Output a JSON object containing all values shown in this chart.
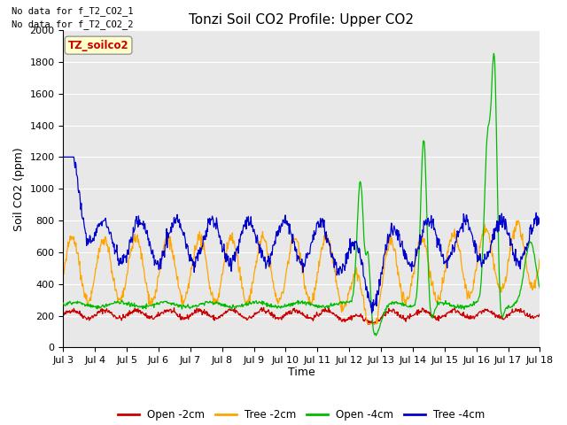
{
  "title": "Tonzi Soil CO2 Profile: Upper CO2",
  "ylabel": "Soil CO2 (ppm)",
  "xlabel": "Time",
  "top_left_text_1": "No data for f_T2_CO2_1",
  "top_left_text_2": "No data for f_T2_CO2_2",
  "data_label": "TZ_soilco2",
  "ylim": [
    0,
    2000
  ],
  "background_color": "#ffffff",
  "plot_bg_color": "#e8e8e8",
  "grid_color": "#ffffff",
  "colors": {
    "open_2cm": "#cc0000",
    "tree_2cm": "#ffa500",
    "open_4cm": "#00bb00",
    "tree_4cm": "#0000cc"
  },
  "legend_labels": [
    "Open -2cm",
    "Tree -2cm",
    "Open -4cm",
    "Tree -4cm"
  ],
  "x_tick_labels": [
    "Jul 3",
    "Jul 4",
    "Jul 5",
    "Jul 6",
    "Jul 7",
    "Jul 8",
    "Jul 9",
    "Jul 10",
    "Jul 11",
    "Jul 12",
    "Jul 13",
    "Jul 14",
    "Jul 15",
    "Jul 16",
    "Jul 17",
    "Jul 18"
  ],
  "n_points": 900
}
